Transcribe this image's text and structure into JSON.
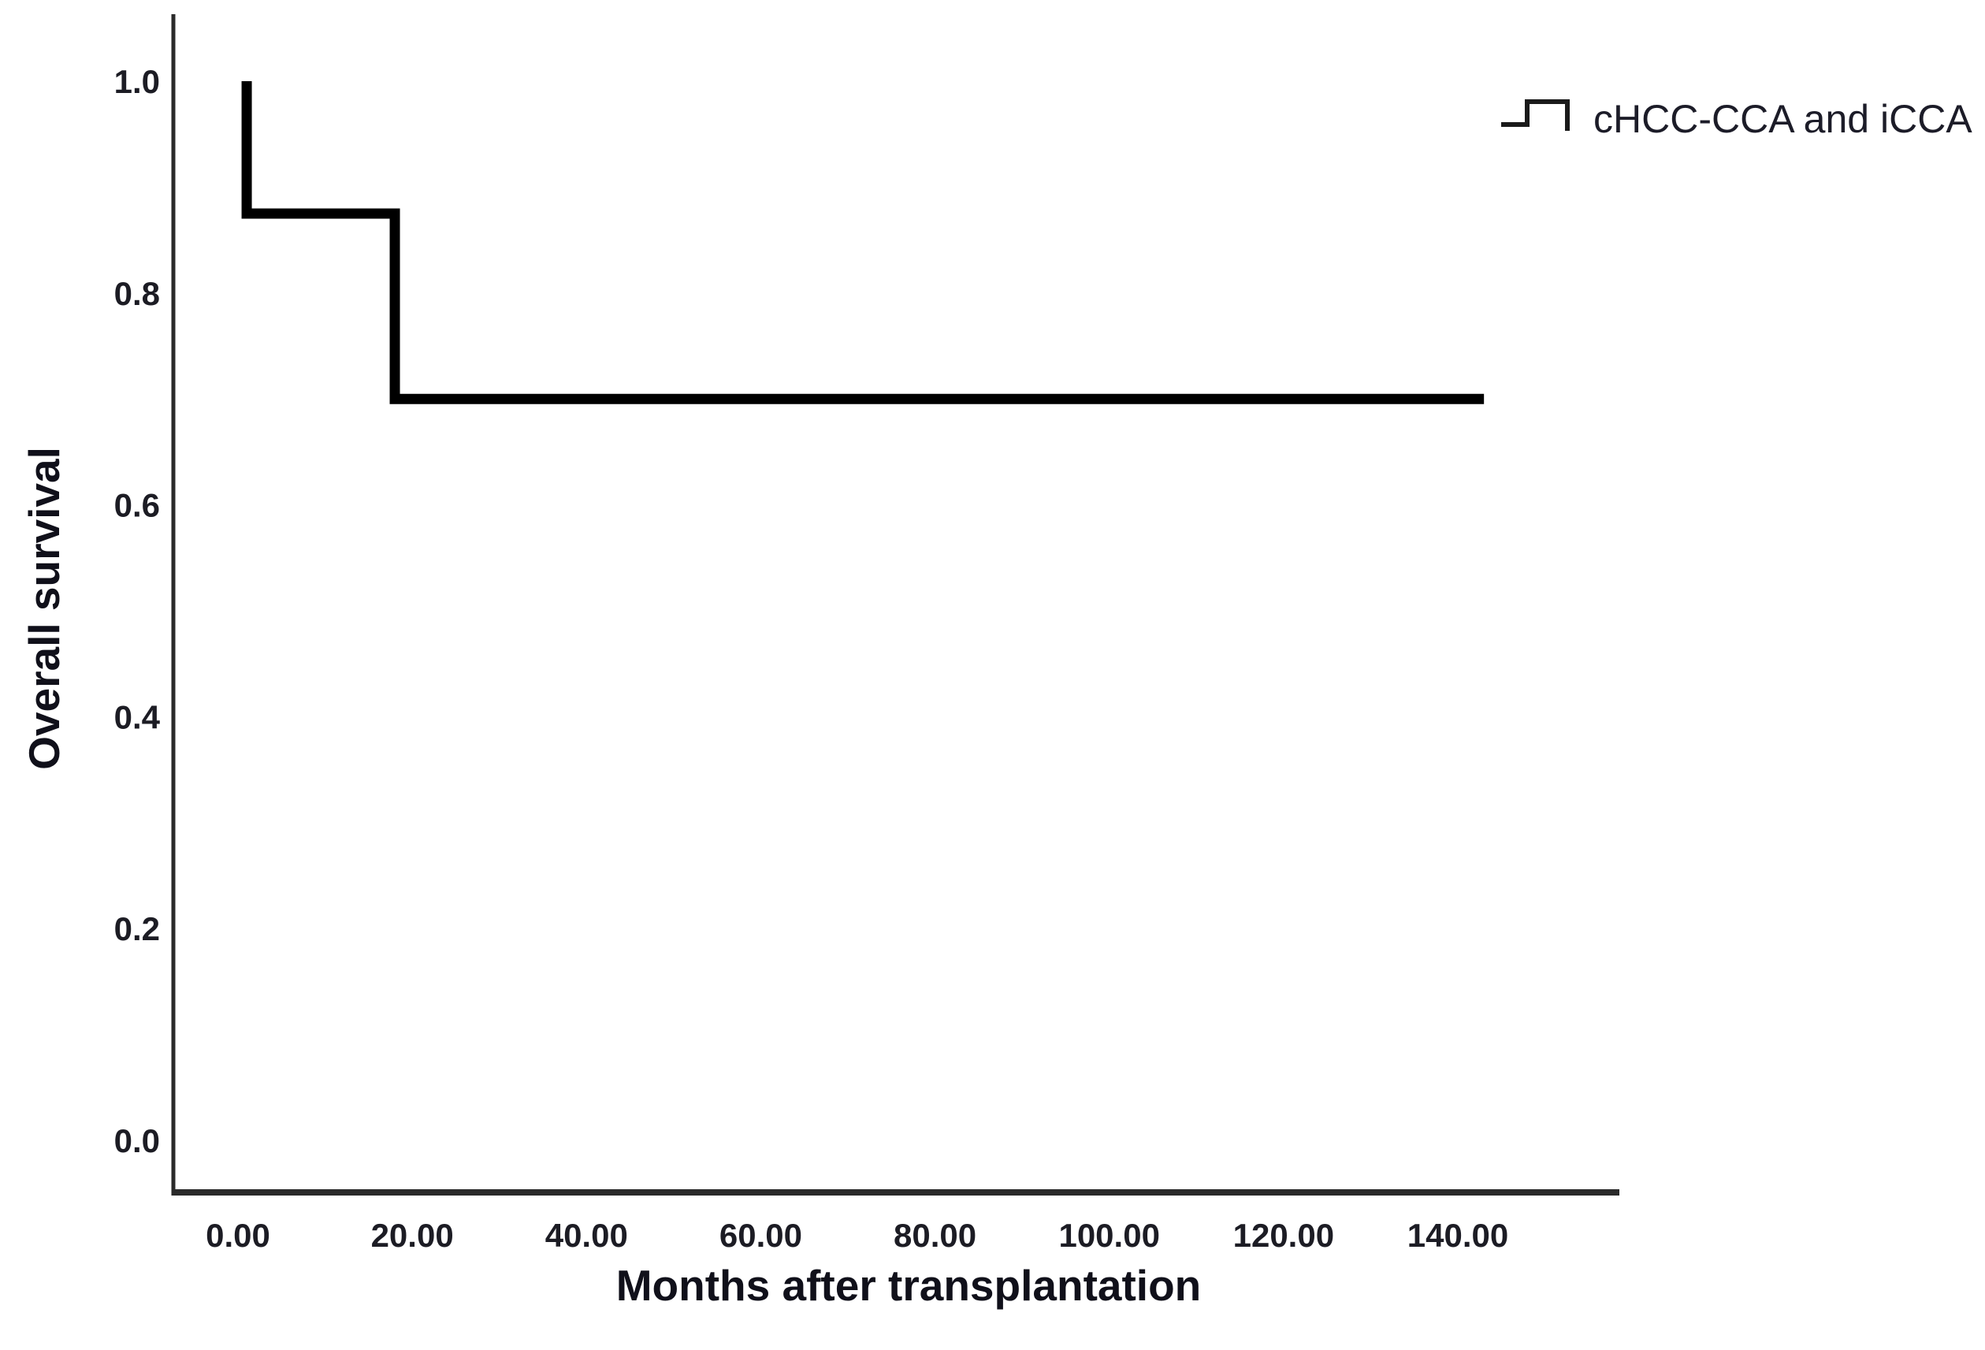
{
  "figure": {
    "background_color": "#ffffff"
  },
  "chart_data": {
    "type": "line",
    "line_style": "step",
    "chart_kind": "kaplan-meier-survival-curve",
    "title": "",
    "xlabel": "Months after transplantation",
    "ylabel": "Overall survival",
    "xlim": [
      -7.6,
      158.5
    ],
    "ylim": [
      -0.05,
      1.06
    ],
    "grid": false,
    "xticks": {
      "values": [
        0,
        20,
        40,
        60,
        80,
        100,
        120,
        140
      ],
      "labels": [
        "0.00",
        "20.00",
        "40.00",
        "60.00",
        "80.00",
        "100.00",
        "120.00",
        "140.00"
      ]
    },
    "yticks": {
      "values": [
        0.0,
        0.2,
        0.4,
        0.6,
        0.8,
        1.0
      ],
      "labels": [
        "0.0",
        "0.2",
        "0.4",
        "0.6",
        "0.8",
        "1.0"
      ]
    },
    "legend": {
      "position": "top-right",
      "entries": [
        {
          "label": "cHCC-CCA and iCCA",
          "marker": "step-line-icon",
          "color": "#000000"
        }
      ]
    },
    "series": [
      {
        "name": "cHCC-CCA and iCCA",
        "color": "#000000",
        "points": [
          [
            1,
            1.0
          ],
          [
            1,
            0.875
          ],
          [
            18,
            0.875
          ],
          [
            18,
            0.7
          ],
          [
            143,
            0.7
          ]
        ]
      }
    ],
    "colors": {
      "curve": "#000000",
      "axis": "#2a2a2a",
      "text": "#1c1c24"
    }
  }
}
